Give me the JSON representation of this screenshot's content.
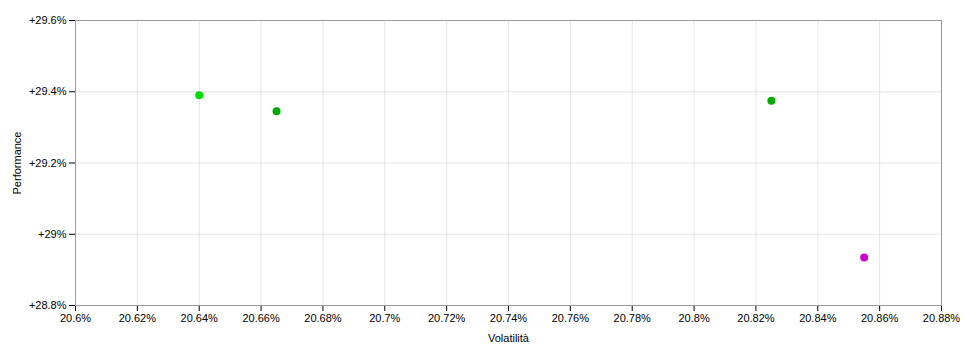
{
  "chart_data": {
    "type": "scatter",
    "x": [
      20.64,
      20.665,
      20.825,
      20.855
    ],
    "values": [
      29.39,
      29.345,
      29.375,
      28.935
    ],
    "colors": [
      "#00dd00",
      "#00aa00",
      "#00aa00",
      "#cc00cc"
    ],
    "xlabel": "Volatilità",
    "ylabel": "Performance",
    "xlim": [
      20.6,
      20.88
    ],
    "ylim": [
      28.8,
      29.6
    ],
    "xticks": [
      {
        "value": 20.6,
        "label": "20.6%"
      },
      {
        "value": 20.62,
        "label": "20.62%"
      },
      {
        "value": 20.64,
        "label": "20.64%"
      },
      {
        "value": 20.66,
        "label": "20.66%"
      },
      {
        "value": 20.68,
        "label": "20.68%"
      },
      {
        "value": 20.7,
        "label": "20.7%"
      },
      {
        "value": 20.72,
        "label": "20.72%"
      },
      {
        "value": 20.74,
        "label": "20.74%"
      },
      {
        "value": 20.76,
        "label": "20.76%"
      },
      {
        "value": 20.78,
        "label": "20.78%"
      },
      {
        "value": 20.8,
        "label": "20.8%"
      },
      {
        "value": 20.82,
        "label": "20.82%"
      },
      {
        "value": 20.84,
        "label": "20.84%"
      },
      {
        "value": 20.86,
        "label": "20.86%"
      },
      {
        "value": 20.88,
        "label": "20.88%"
      }
    ],
    "yticks": [
      {
        "value": 28.8,
        "label": "+28.8%"
      },
      {
        "value": 29.0,
        "label": "+29%"
      },
      {
        "value": 29.2,
        "label": "+29.2%"
      },
      {
        "value": 29.4,
        "label": "+29.4%"
      },
      {
        "value": 29.6,
        "label": "+29.6%"
      }
    ],
    "grid": true
  }
}
